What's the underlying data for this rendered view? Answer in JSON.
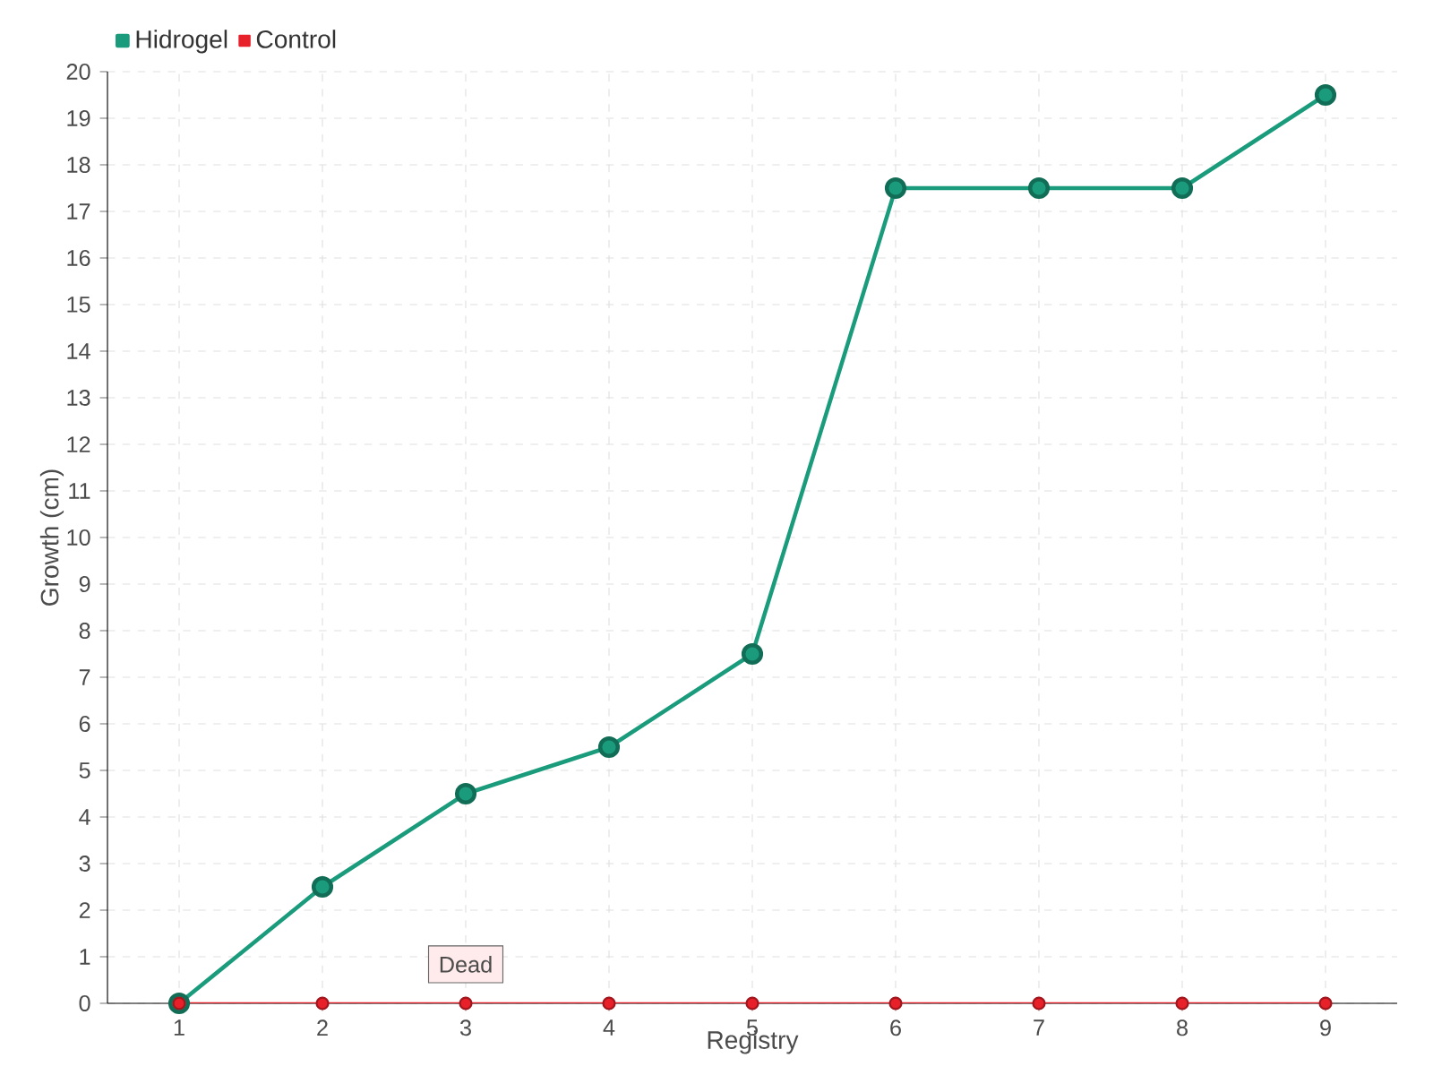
{
  "chart_data": {
    "type": "line",
    "xlabel": "Registry",
    "ylabel": "Growth (cm)",
    "categories": [
      "1",
      "2",
      "3",
      "4",
      "5",
      "6",
      "7",
      "8",
      "9"
    ],
    "series": [
      {
        "name": "Hidrogel",
        "color": "#1a9c7c",
        "values": [
          0,
          2.5,
          4.5,
          5.5,
          7.5,
          17.5,
          17.5,
          17.5,
          19.5
        ]
      },
      {
        "name": "Control",
        "color": "#e8202a",
        "values": [
          0,
          0,
          0,
          0,
          0,
          0,
          0,
          0,
          0
        ]
      }
    ],
    "ylim": [
      0,
      20
    ],
    "yticks": [
      0,
      1,
      2,
      3,
      4,
      5,
      6,
      7,
      8,
      9,
      10,
      11,
      12,
      13,
      14,
      15,
      16,
      17,
      18,
      19,
      20
    ],
    "annotations": [
      {
        "text": "Dead",
        "x": "3",
        "y": 0
      }
    ],
    "grid": true,
    "legend": "top left",
    "marker": "circle",
    "line_style": "solid"
  }
}
